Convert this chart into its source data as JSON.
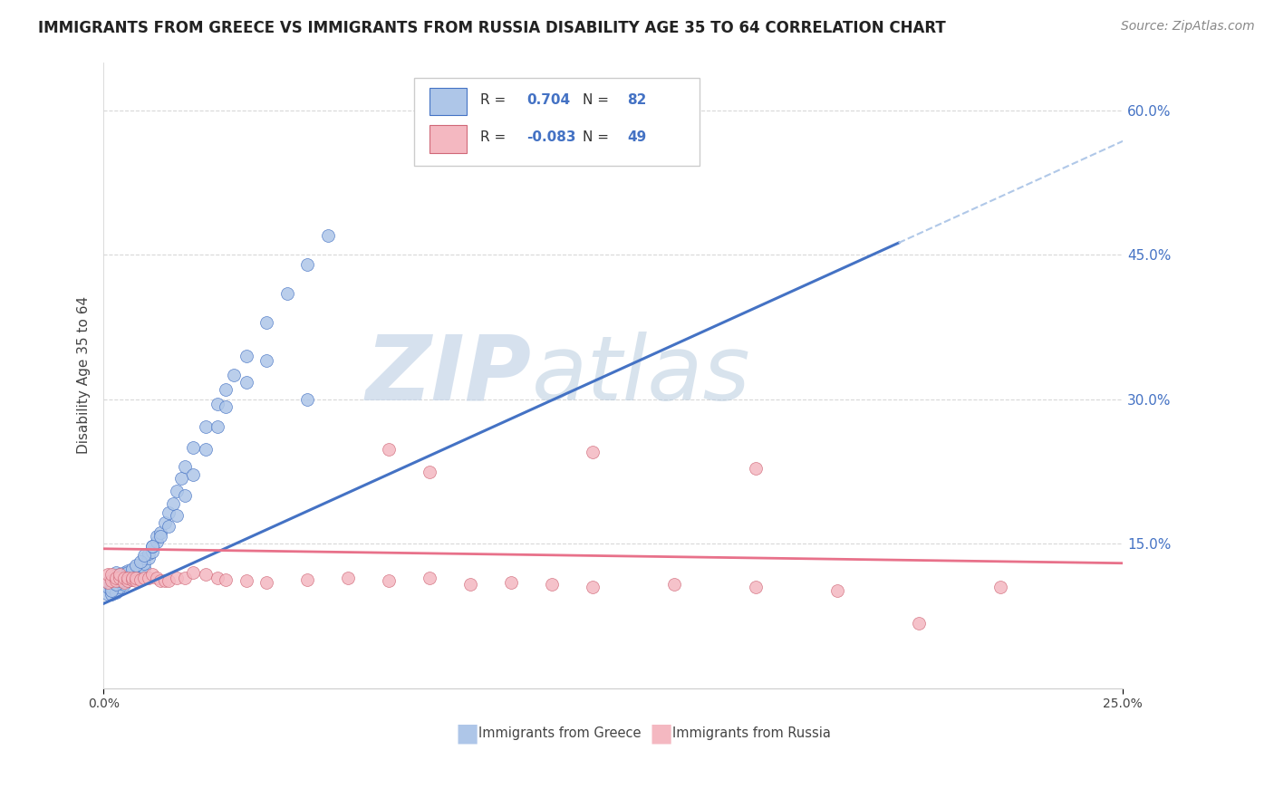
{
  "title": "IMMIGRANTS FROM GREECE VS IMMIGRANTS FROM RUSSIA DISABILITY AGE 35 TO 64 CORRELATION CHART",
  "source": "Source: ZipAtlas.com",
  "ylabel": "Disability Age 35 to 64",
  "ytick_vals": [
    0.15,
    0.3,
    0.45,
    0.6
  ],
  "xlim": [
    0.0,
    0.25
  ],
  "ylim": [
    0.0,
    0.65
  ],
  "greece_R": 0.704,
  "greece_N": 82,
  "russia_R": -0.083,
  "russia_N": 49,
  "greece_color": "#aec6e8",
  "russia_color": "#f4b8c1",
  "greece_line_color": "#4472C4",
  "russia_line_color": "#e8718a",
  "trend_dashed_color": "#b0c8e8",
  "watermark_zip_color": "#c8d8ee",
  "watermark_atlas_color": "#b8cfe8",
  "background_color": "#ffffff",
  "greece_line_intercept": 0.088,
  "greece_line_slope": 1.92,
  "russia_line_intercept": 0.145,
  "russia_line_slope": -0.06,
  "greece_x": [
    0.001,
    0.001,
    0.001,
    0.002,
    0.002,
    0.002,
    0.002,
    0.003,
    0.003,
    0.003,
    0.003,
    0.003,
    0.004,
    0.004,
    0.004,
    0.004,
    0.005,
    0.005,
    0.005,
    0.005,
    0.005,
    0.006,
    0.006,
    0.006,
    0.006,
    0.007,
    0.007,
    0.007,
    0.008,
    0.008,
    0.008,
    0.009,
    0.009,
    0.009,
    0.01,
    0.01,
    0.01,
    0.011,
    0.011,
    0.012,
    0.012,
    0.013,
    0.013,
    0.014,
    0.015,
    0.016,
    0.017,
    0.018,
    0.019,
    0.02,
    0.022,
    0.025,
    0.028,
    0.03,
    0.032,
    0.035,
    0.04,
    0.045,
    0.05,
    0.055,
    0.002,
    0.003,
    0.004,
    0.005,
    0.006,
    0.007,
    0.008,
    0.009,
    0.01,
    0.012,
    0.014,
    0.016,
    0.018,
    0.02,
    0.022,
    0.025,
    0.028,
    0.03,
    0.035,
    0.04,
    0.05,
    0.12
  ],
  "greece_y": [
    0.098,
    0.105,
    0.11,
    0.098,
    0.105,
    0.11,
    0.115,
    0.1,
    0.108,
    0.112,
    0.115,
    0.12,
    0.105,
    0.11,
    0.115,
    0.118,
    0.108,
    0.112,
    0.115,
    0.118,
    0.12,
    0.112,
    0.115,
    0.118,
    0.122,
    0.115,
    0.118,
    0.122,
    0.118,
    0.122,
    0.126,
    0.12,
    0.124,
    0.128,
    0.125,
    0.13,
    0.135,
    0.135,
    0.14,
    0.142,
    0.148,
    0.152,
    0.158,
    0.162,
    0.172,
    0.182,
    0.192,
    0.205,
    0.218,
    0.23,
    0.25,
    0.272,
    0.295,
    0.31,
    0.325,
    0.345,
    0.38,
    0.41,
    0.44,
    0.47,
    0.102,
    0.108,
    0.112,
    0.116,
    0.12,
    0.124,
    0.128,
    0.132,
    0.138,
    0.148,
    0.158,
    0.168,
    0.18,
    0.2,
    0.222,
    0.248,
    0.272,
    0.292,
    0.318,
    0.34,
    0.3,
    0.57
  ],
  "russia_x": [
    0.001,
    0.001,
    0.002,
    0.002,
    0.003,
    0.003,
    0.004,
    0.004,
    0.005,
    0.005,
    0.006,
    0.006,
    0.007,
    0.007,
    0.008,
    0.008,
    0.009,
    0.01,
    0.011,
    0.012,
    0.013,
    0.014,
    0.015,
    0.016,
    0.018,
    0.02,
    0.022,
    0.025,
    0.028,
    0.03,
    0.035,
    0.04,
    0.05,
    0.06,
    0.07,
    0.08,
    0.09,
    0.1,
    0.11,
    0.12,
    0.14,
    0.16,
    0.18,
    0.2,
    0.22,
    0.08,
    0.16,
    0.12,
    0.07
  ],
  "russia_y": [
    0.11,
    0.118,
    0.112,
    0.118,
    0.112,
    0.115,
    0.115,
    0.118,
    0.11,
    0.115,
    0.112,
    0.115,
    0.113,
    0.115,
    0.112,
    0.115,
    0.113,
    0.115,
    0.115,
    0.118,
    0.115,
    0.112,
    0.112,
    0.112,
    0.115,
    0.115,
    0.12,
    0.118,
    0.115,
    0.113,
    0.112,
    0.11,
    0.113,
    0.115,
    0.112,
    0.115,
    0.108,
    0.11,
    0.108,
    0.105,
    0.108,
    0.105,
    0.102,
    0.068,
    0.105,
    0.225,
    0.228,
    0.245,
    0.248
  ]
}
